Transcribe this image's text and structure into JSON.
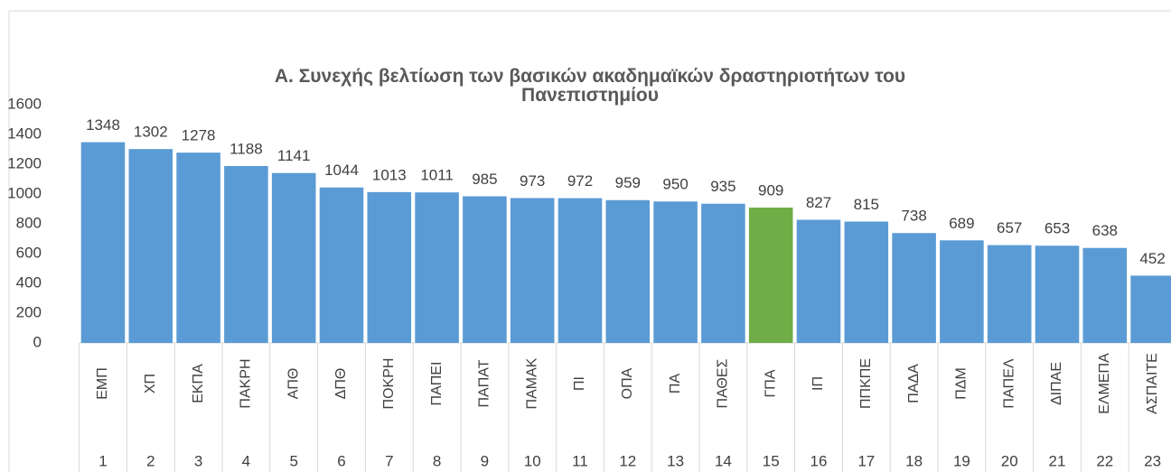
{
  "chart_data": {
    "type": "bar",
    "title": "Α. Συνεχής βελτίωση των βασικών ακαδημαϊκών δραστηριοτήτων του Πανεπιστημίου",
    "categories": [
      "ΕΜΠ",
      "ΧΠ",
      "ΕΚΠΑ",
      "ΠΑΚΡΗ",
      "ΑΠΘ",
      "ΔΠΘ",
      "ΠΟΚΡΗ",
      "ΠΑΠΕΙ",
      "ΠΑΠΑΤ",
      "ΠΑΜΑΚ",
      "ΠΙ",
      "ΟΠΑ",
      "ΠΑ",
      "ΠΑΘΕΣ",
      "ΓΠΑ",
      "ΙΠ",
      "ΠΠΚΠΕ",
      "ΠΑΔΑ",
      "ΠΔΜ",
      "ΠΑΠΕΛ",
      "ΔΙΠΑΕ",
      "ΕΛΜΕΠΑ",
      "ΑΣΠΑΙΤΕ"
    ],
    "category_numbers": [
      1,
      2,
      3,
      4,
      5,
      6,
      7,
      8,
      9,
      10,
      11,
      12,
      13,
      14,
      15,
      16,
      17,
      18,
      19,
      20,
      21,
      22,
      23
    ],
    "values": [
      1348,
      1302,
      1278,
      1188,
      1141,
      1044,
      1013,
      1011,
      985,
      973,
      972,
      959,
      950,
      935,
      909,
      827,
      815,
      738,
      689,
      657,
      653,
      638,
      452
    ],
    "colors": [
      "#5b9bd5",
      "#5b9bd5",
      "#5b9bd5",
      "#5b9bd5",
      "#5b9bd5",
      "#5b9bd5",
      "#5b9bd5",
      "#5b9bd5",
      "#5b9bd5",
      "#5b9bd5",
      "#5b9bd5",
      "#5b9bd5",
      "#5b9bd5",
      "#5b9bd5",
      "#70ad47",
      "#5b9bd5",
      "#5b9bd5",
      "#5b9bd5",
      "#5b9bd5",
      "#5b9bd5",
      "#5b9bd5",
      "#5b9bd5",
      "#5b9bd5"
    ],
    "ylim": [
      0,
      1600
    ],
    "yticks": [
      0,
      200,
      400,
      600,
      800,
      1000,
      1200,
      1400,
      1600
    ],
    "grid": false
  }
}
